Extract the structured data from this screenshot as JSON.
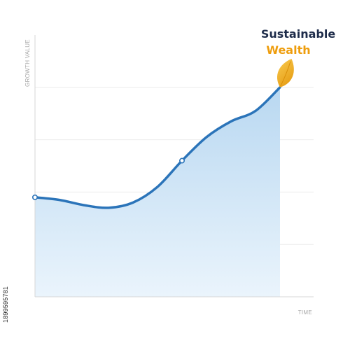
{
  "chart_data": {
    "type": "area",
    "title_line_1": "Sustainable",
    "title_line_2": "Wealth",
    "xlabel": "TIME",
    "ylabel": "GROWTH VALUE",
    "grid": true,
    "series": [
      {
        "values": [
          0.38,
          0.37,
          0.35,
          0.34,
          0.36,
          0.42,
          0.52,
          0.61,
          0.67,
          0.71,
          0.8
        ]
      }
    ],
    "x": [
      0,
      1,
      2,
      3,
      4,
      5,
      6,
      7,
      8,
      9,
      10
    ],
    "ylim": [
      0,
      1
    ],
    "xlim": [
      0,
      10
    ],
    "marked_points": [
      0,
      6
    ],
    "colors": {
      "line": "#2b74b9",
      "fill_top": "#b9d8f1",
      "fill_bottom": "#eaf4fc",
      "title_dark": "#1e2c4a",
      "title_accent": "#ee9d0d",
      "leaf": "#f2b32b",
      "leaf_dark": "#d98f0a",
      "axis": "#d7d7d7",
      "grid": "#ececec"
    }
  },
  "stock_id": "1899595781"
}
